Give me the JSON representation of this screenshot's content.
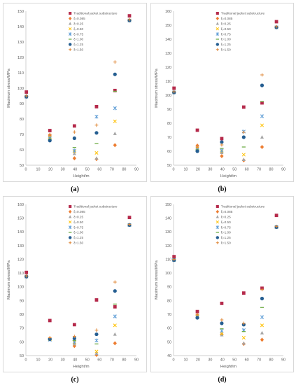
{
  "chart_data": [
    {
      "panel_label": "(a)",
      "type": "scatter",
      "xlabel": "Height/m",
      "ylabel": "Maximum stress/MPa",
      "xlim": [
        0,
        90
      ],
      "ylim": [
        50,
        150
      ],
      "xticks": [
        0,
        10,
        20,
        30,
        40,
        50,
        60,
        70,
        80,
        90
      ],
      "yticks": [
        50,
        60,
        70,
        80,
        90,
        100,
        110,
        120,
        130,
        140,
        150
      ],
      "grid": false,
      "legend": "top-right",
      "x": [
        0.4,
        19.5,
        39.5,
        57.5,
        72.5,
        84.3
      ],
      "series": [
        {
          "name": "Traditional jacket substructure",
          "marker": "square",
          "color": "#B52A4B",
          "values": [
            97.5,
            72.5,
            75.5,
            88,
            98.5,
            147
          ]
        },
        {
          "name": "ξ=0.085",
          "marker": "diamond",
          "color": "#ED7D31",
          "values": [
            94.5,
            69.5,
            54.5,
            54,
            63,
            144
          ]
        },
        {
          "name": "ξ=0.25",
          "marker": "triangle",
          "color": "#A5A5A5",
          "values": [
            94.5,
            68.5,
            57.5,
            54.5,
            70.5,
            144
          ]
        },
        {
          "name": "ξ=0.50",
          "marker": "x",
          "color": "#FFC000",
          "values": [
            94.5,
            68,
            59,
            58,
            78.5,
            144
          ]
        },
        {
          "name": "ξ=0.75",
          "marker": "star",
          "color": "#5B9BD5",
          "values": [
            94.5,
            67.5,
            59.5,
            81.5,
            87,
            144
          ]
        },
        {
          "name": "ξ=1.00",
          "marker": "dash",
          "color": "#70AD47",
          "values": [
            94.5,
            67,
            61.5,
            64,
            98,
            144
          ]
        },
        {
          "name": "ξ=1.25",
          "marker": "circle",
          "color": "#255E91",
          "values": [
            94.5,
            66,
            67.5,
            71,
            109,
            144
          ]
        },
        {
          "name": "ξ=1.50",
          "marker": "plus",
          "color": "#E0893A",
          "values": [
            95,
            70,
            71.5,
            76,
            117,
            144.5
          ]
        }
      ]
    },
    {
      "panel_label": "(b)",
      "type": "scatter",
      "xlabel": "Height/m",
      "ylabel": "Maximum stress/MPa",
      "xlim": [
        0,
        90
      ],
      "ylim": [
        50,
        160
      ],
      "xticks": [
        0,
        10,
        20,
        30,
        40,
        50,
        60,
        70,
        80,
        90
      ],
      "yticks": [
        50,
        60,
        70,
        80,
        90,
        100,
        110,
        120,
        130,
        140,
        150,
        160
      ],
      "grid": false,
      "legend": "top-right",
      "x": [
        0.4,
        19.5,
        39.5,
        57.5,
        72.5,
        84.3
      ],
      "series": [
        {
          "name": "Traditional jacket substructure",
          "marker": "square",
          "color": "#B52A4B",
          "values": [
            105,
            75,
            69,
            91.5,
            94.5,
            152.5
          ]
        },
        {
          "name": "ξ=0.085",
          "marker": "diamond",
          "color": "#ED7D31",
          "values": [
            102,
            64,
            56.5,
            53.5,
            63,
            148.5
          ]
        },
        {
          "name": "ξ=0.25",
          "marker": "triangle",
          "color": "#A5A5A5",
          "values": [
            102,
            63,
            59,
            54,
            70,
            148.5
          ]
        },
        {
          "name": "ξ=0.50",
          "marker": "x",
          "color": "#FFC000",
          "values": [
            102,
            62,
            60,
            57.5,
            78.5,
            148.5
          ]
        },
        {
          "name": "ξ=0.75",
          "marker": "star",
          "color": "#5B9BD5",
          "values": [
            102,
            61,
            60.5,
            74,
            85,
            148.5
          ]
        },
        {
          "name": "ξ=1.00",
          "marker": "dash",
          "color": "#70AD47",
          "values": [
            102,
            61,
            62,
            63,
            95.5,
            148.5
          ]
        },
        {
          "name": "ξ=1.25",
          "marker": "circle",
          "color": "#255E91",
          "values": [
            102,
            60,
            66.5,
            70,
            107,
            148.5
          ]
        },
        {
          "name": "ξ=1.50",
          "marker": "plus",
          "color": "#E0893A",
          "values": [
            102.5,
            63,
            64.5,
            73.5,
            114.5,
            149
          ]
        }
      ]
    },
    {
      "panel_label": "(c)",
      "type": "scatter",
      "xlabel": "Height/m",
      "ylabel": "Maximum stress/MPa",
      "xlim": [
        0,
        90
      ],
      "ylim": [
        50,
        160
      ],
      "xticks": [
        0,
        10,
        20,
        30,
        40,
        50,
        60,
        70,
        80,
        90
      ],
      "yticks": [
        50,
        60,
        70,
        80,
        90,
        100,
        110,
        120,
        130,
        140,
        150,
        160
      ],
      "grid": false,
      "legend": "top-right",
      "x": [
        0.4,
        19.5,
        39.5,
        57.5,
        72.5,
        84.3
      ],
      "series": [
        {
          "name": "Traditional jacket substructure",
          "marker": "square",
          "color": "#B52A4B",
          "values": [
            110.5,
            75.5,
            72.5,
            90.5,
            85.5,
            150.5
          ]
        },
        {
          "name": "ξ=0.085",
          "marker": "diamond",
          "color": "#ED7D31",
          "values": [
            107.5,
            62.5,
            57,
            50.5,
            59,
            145
          ]
        },
        {
          "name": "ξ=0.25",
          "marker": "triangle",
          "color": "#A5A5A5",
          "values": [
            107.5,
            62,
            58.5,
            51.5,
            65.5,
            145
          ]
        },
        {
          "name": "ξ=0.50",
          "marker": "x",
          "color": "#FFC000",
          "values": [
            107.5,
            62,
            59.5,
            53,
            72,
            145
          ]
        },
        {
          "name": "ξ=0.75",
          "marker": "star",
          "color": "#5B9BD5",
          "values": [
            107.5,
            61.5,
            60,
            61,
            78.5,
            145
          ]
        },
        {
          "name": "ξ=1.00",
          "marker": "dash",
          "color": "#70AD47",
          "values": [
            107.5,
            61.5,
            61,
            58.5,
            87.5,
            145
          ]
        },
        {
          "name": "ξ=1.25",
          "marker": "circle",
          "color": "#255E91",
          "values": [
            107.5,
            62,
            62.5,
            65.5,
            97,
            145
          ]
        },
        {
          "name": "ξ=1.50",
          "marker": "plus",
          "color": "#E0893A",
          "values": [
            108,
            63,
            64,
            68.5,
            103.5,
            145.5
          ]
        }
      ]
    },
    {
      "panel_label": "(d)",
      "type": "scatter",
      "xlabel": "Height/m",
      "ylabel": "Maximum stress/MPa",
      "xlim": [
        0,
        90
      ],
      "ylim": [
        40,
        150
      ],
      "xticks": [
        0,
        10,
        20,
        30,
        40,
        50,
        60,
        70,
        80,
        90
      ],
      "yticks": [
        40,
        50,
        60,
        70,
        80,
        90,
        100,
        110,
        120,
        130,
        140,
        150
      ],
      "grid": false,
      "legend": "top-right",
      "x": [
        0.4,
        19.5,
        39.5,
        57.5,
        72.5,
        84.3
      ],
      "series": [
        {
          "name": "Traditional jacket substructure",
          "marker": "square",
          "color": "#B52A4B",
          "values": [
            112,
            72,
            78,
            85.5,
            89,
            142
          ]
        },
        {
          "name": "ξ=0.085",
          "marker": "diamond",
          "color": "#ED7D31",
          "values": [
            109.5,
            69.5,
            55.5,
            48.5,
            51.5,
            133.5
          ]
        },
        {
          "name": "ξ=0.25",
          "marker": "triangle",
          "color": "#A5A5A5",
          "values": [
            109.5,
            69,
            55,
            49,
            56.5,
            133.5
          ]
        },
        {
          "name": "ξ=0.50",
          "marker": "x",
          "color": "#FFC000",
          "values": [
            109.5,
            68.5,
            56,
            53,
            62,
            133.5
          ]
        },
        {
          "name": "ξ=0.75",
          "marker": "star",
          "color": "#5B9BD5",
          "values": [
            109.5,
            68,
            58,
            58.5,
            68,
            133.5
          ]
        },
        {
          "name": "ξ=1.00",
          "marker": "dash",
          "color": "#70AD47",
          "values": [
            109.5,
            67.5,
            59.5,
            57.5,
            75,
            133.5
          ]
        },
        {
          "name": "ξ=1.25",
          "marker": "circle",
          "color": "#255E91",
          "values": [
            109.5,
            67.5,
            63.5,
            62.5,
            81.5,
            133.5
          ]
        },
        {
          "name": "ξ=1.50",
          "marker": "plus",
          "color": "#E0893A",
          "values": [
            110,
            70,
            66,
            63.5,
            88,
            134
          ]
        }
      ]
    }
  ]
}
